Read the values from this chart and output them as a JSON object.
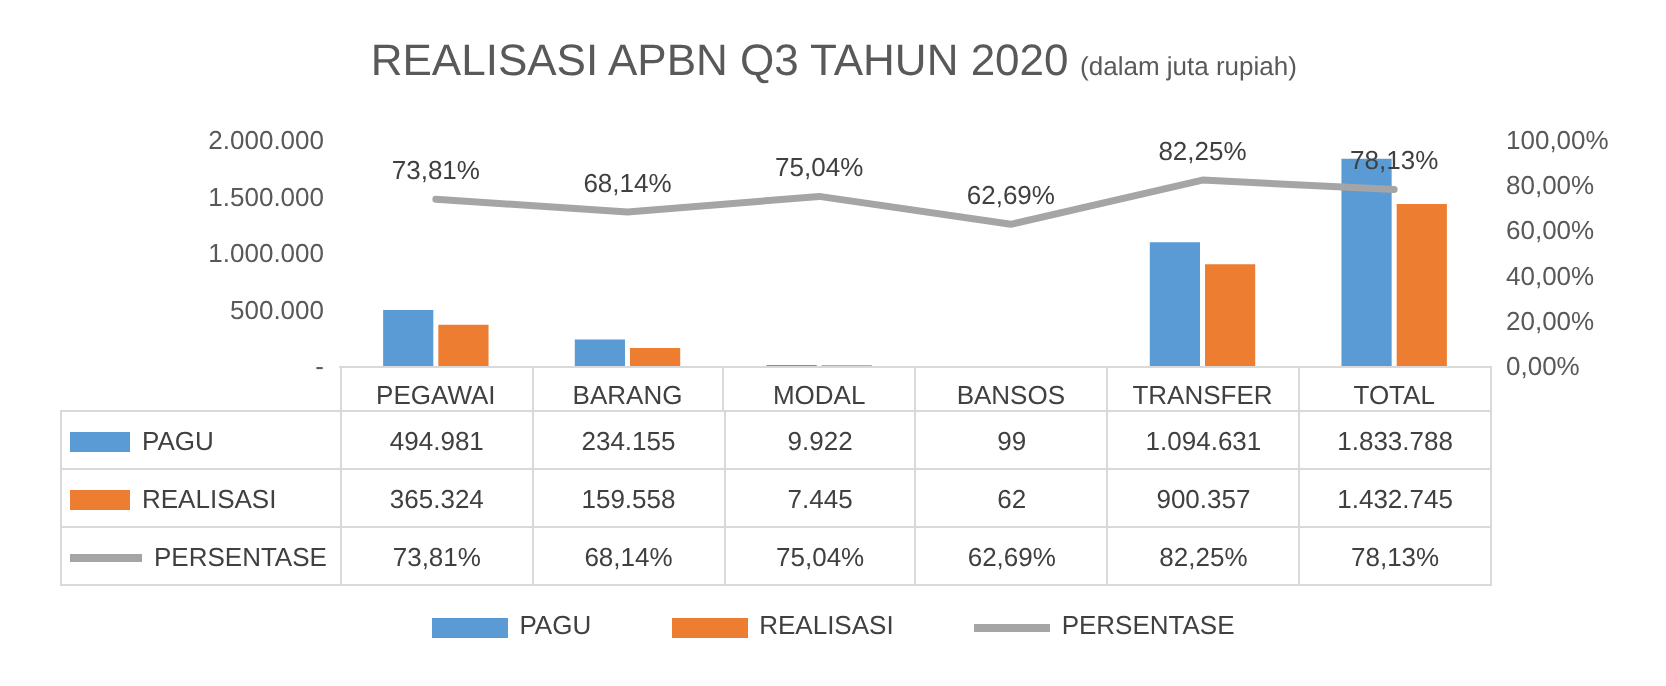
{
  "chart_data": {
    "type": "bar",
    "title": "REALISASI APBN Q3 TAHUN 2020",
    "subtitle": "(dalam juta rupiah)",
    "categories": [
      "PEGAWAI",
      "BARANG",
      "MODAL",
      "BANSOS",
      "TRANSFER",
      "TOTAL"
    ],
    "series": [
      {
        "name": "PAGU",
        "color": "#5b9bd5",
        "values": [
          494981,
          234155,
          9922,
          99,
          1094631,
          1833788
        ],
        "value_labels": [
          "494.981",
          "234.155",
          "9.922",
          "99",
          "1.094.631",
          "1.833.788"
        ]
      },
      {
        "name": "REALISASI",
        "color": "#ed7d31",
        "values": [
          365324,
          159558,
          7445,
          62,
          900357,
          1432745
        ],
        "value_labels": [
          "365.324",
          "159.558",
          "7.445",
          "62",
          "900.357",
          "1.432.745"
        ]
      },
      {
        "name": "PERSENTASE",
        "type": "line",
        "axis": "y2",
        "color": "#a5a5a5",
        "values": [
          73.81,
          68.14,
          75.04,
          62.69,
          82.25,
          78.13
        ],
        "value_labels": [
          "73,81%",
          "68,14%",
          "75,04%",
          "62,69%",
          "82,25%",
          "78,13%"
        ]
      }
    ],
    "ylim": [
      0,
      2000000
    ],
    "yticks": [
      {
        "value": 0,
        "label": "-"
      },
      {
        "value": 500000,
        "label": "500.000"
      },
      {
        "value": 1000000,
        "label": "1.000.000"
      },
      {
        "value": 1500000,
        "label": "1.500.000"
      },
      {
        "value": 2000000,
        "label": "2.000.000"
      }
    ],
    "y2lim": [
      0,
      100
    ],
    "y2ticks": [
      {
        "value": 0,
        "label": "0,00%"
      },
      {
        "value": 20,
        "label": "20,00%"
      },
      {
        "value": 40,
        "label": "40,00%"
      },
      {
        "value": 60,
        "label": "60,00%"
      },
      {
        "value": 80,
        "label": "80,00%"
      },
      {
        "value": 100,
        "label": "100,00%"
      }
    ],
    "legend": "bottom",
    "marker": "none",
    "line_style": "solid",
    "grid": false
  }
}
